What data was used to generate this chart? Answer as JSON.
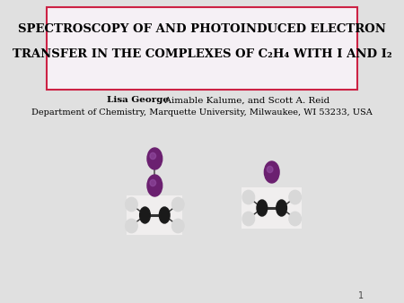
{
  "background_color": "#e0e0e0",
  "title_box_color": "#f5f0f5",
  "title_box_border_color": "#cc2244",
  "title_line1": "SPECTROSCOPY OF AND PHOTOINDUCED ELECTRON",
  "title_line2": "TRANSFER IN THE COMPLEXES OF C₂H₄ WITH I AND I₂",
  "author_bold": "Lisa George",
  "author_rest": ", Aimable Kalume, and Scott A. Reid",
  "affiliation": "Department of Chemistry, Marquette University, Milwaukee, WI 53233, USA",
  "slide_number": "1",
  "title_fontsize": 9.5,
  "author_fontsize": 7.5,
  "affil_fontsize": 7.0,
  "iodine_color": "#6b2070",
  "carbon_color": "#1a1a1a",
  "hydrogen_color": "#d8d8d8",
  "bond_color": "#333333",
  "white_box_color": "#f0eeee"
}
